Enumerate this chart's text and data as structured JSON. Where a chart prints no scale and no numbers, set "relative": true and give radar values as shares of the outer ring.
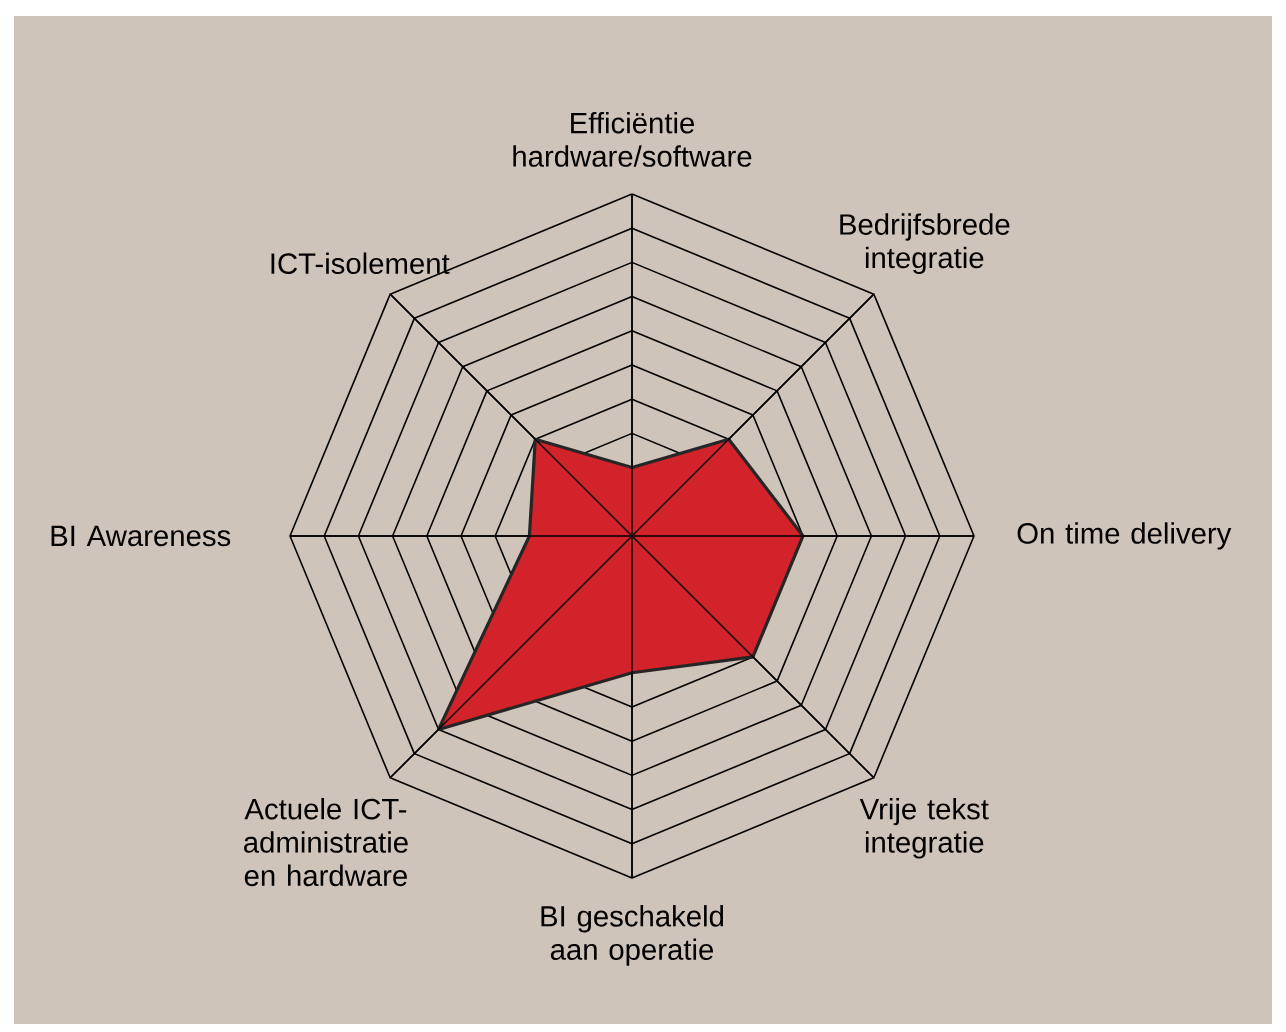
{
  "chart_data": {
    "type": "radar",
    "relative": true,
    "grid": true,
    "categories": [
      "Efficiëntie hardware/software",
      "Bedrijfsbrede integratie",
      "On time delivery",
      "Vrije tekst integratie",
      "BI geschakeld aan operatie",
      "Actuele ICT-administratie en hardware",
      "BI Awareness",
      "ICT-isolement"
    ],
    "series": [
      {
        "color": "#d2232a",
        "values": [
          0.2,
          0.4,
          0.5,
          0.5,
          0.4,
          0.8,
          0.3,
          0.4
        ]
      }
    ]
  }
}
